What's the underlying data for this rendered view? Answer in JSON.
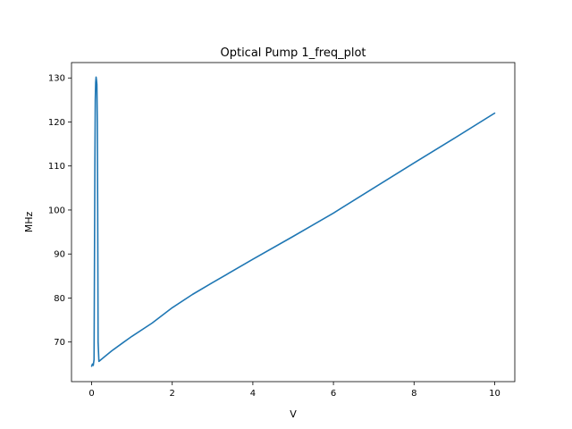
{
  "chart_data": {
    "type": "line",
    "title": "Optical Pump 1_freq_plot",
    "xlabel": "V",
    "ylabel": "MHz",
    "xlim": [
      -0.5,
      10.5
    ],
    "ylim": [
      61,
      133.5
    ],
    "xticks": [
      0,
      2,
      4,
      6,
      8,
      10
    ],
    "yticks": [
      70,
      80,
      90,
      100,
      110,
      120,
      130
    ],
    "grid": false,
    "line_color": "#1f77b4",
    "series": [
      {
        "x": [
          0.0,
          0.02,
          0.04,
          0.06,
          0.08,
          0.09,
          0.1,
          0.11,
          0.12,
          0.13,
          0.14,
          0.15,
          0.16,
          0.18,
          0.3,
          0.5,
          0.8,
          1.0,
          1.5,
          2.0,
          2.5,
          3.0,
          4.0,
          5.0,
          6.0,
          7.0,
          8.0,
          9.0,
          10.0
        ],
        "y": [
          64.5,
          65.0,
          64.7,
          66.0,
          110.0,
          125.0,
          129.0,
          130.2,
          129.5,
          128.5,
          120.0,
          100.0,
          70.0,
          65.6,
          66.5,
          68.0,
          70.0,
          71.3,
          74.3,
          77.8,
          80.8,
          83.5,
          88.8,
          94.0,
          99.3,
          105.0,
          110.7,
          116.3,
          122.0
        ]
      }
    ]
  }
}
